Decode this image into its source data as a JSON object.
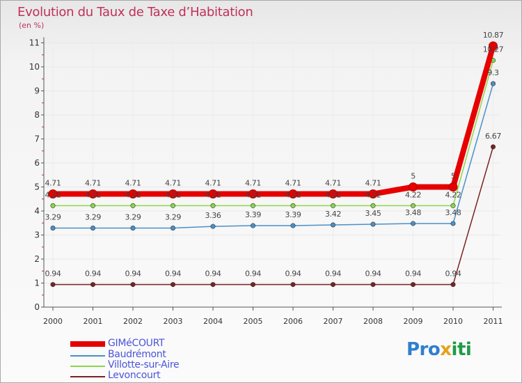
{
  "title": "Evolution du Taux de Taxe d’Habitation",
  "subtitle": "(en %)",
  "logo": {
    "part1": "Pro",
    "part2": "x",
    "part3": "iti"
  },
  "chart_data": {
    "type": "line",
    "title": "Evolution du Taux de Taxe d’Habitation",
    "ylabel": "(en %)",
    "ylim": [
      0,
      11
    ],
    "yticks": [
      "0",
      "1",
      "2",
      "3",
      "4",
      "5",
      "6",
      "7",
      "8",
      "9",
      "10",
      "11"
    ],
    "x": [
      "2000",
      "2001",
      "2002",
      "2003",
      "2004",
      "2005",
      "2006",
      "2007",
      "2008",
      "2009",
      "2010",
      "2011"
    ],
    "series": [
      {
        "name": "Levoncourt",
        "color": "#7a2222",
        "values": [
          0.94,
          0.94,
          0.94,
          0.94,
          0.94,
          0.94,
          0.94,
          0.94,
          0.94,
          0.94,
          0.94,
          6.67
        ],
        "labels": [
          "0.94",
          "0.94",
          "0.94",
          "0.94",
          "0.94",
          "0.94",
          "0.94",
          "0.94",
          "0.94",
          "0.94",
          "0.94",
          "6.67"
        ]
      },
      {
        "name": "Baudrémont",
        "color": "#4a90c8",
        "values": [
          3.29,
          3.29,
          3.29,
          3.29,
          3.36,
          3.39,
          3.39,
          3.42,
          3.45,
          3.48,
          3.48,
          9.3
        ],
        "labels": [
          "3.29",
          "3.29",
          "3.29",
          "3.29",
          "3.36",
          "3.39",
          "3.39",
          "3.42",
          "3.45",
          "3.48",
          "3.48",
          "9.3"
        ]
      },
      {
        "name": "Villotte-sur-Aire",
        "color": "#8cd64a",
        "values": [
          4.22,
          4.22,
          4.22,
          4.22,
          4.22,
          4.22,
          4.22,
          4.22,
          4.22,
          4.22,
          4.22,
          10.27
        ],
        "labels": [
          "4.22",
          "4.22",
          "4.22",
          "4.22",
          "4.22",
          "4.22",
          "4.22",
          "4.22",
          "4.22",
          "4.22",
          "4.22",
          "10.27"
        ]
      },
      {
        "name": "GIMéCOURT",
        "color": "#e60000",
        "values": [
          4.71,
          4.71,
          4.71,
          4.71,
          4.71,
          4.71,
          4.71,
          4.71,
          4.71,
          5,
          5,
          10.87
        ],
        "labels": [
          "4.71",
          "4.71",
          "4.71",
          "4.71",
          "4.71",
          "4.71",
          "4.71",
          "4.71",
          "4.71",
          "5",
          "5",
          "10.87"
        ]
      }
    ],
    "legend": [
      "GIMéCOURT",
      "Baudrémont",
      "Villotte-sur-Aire",
      "Levoncourt"
    ]
  }
}
